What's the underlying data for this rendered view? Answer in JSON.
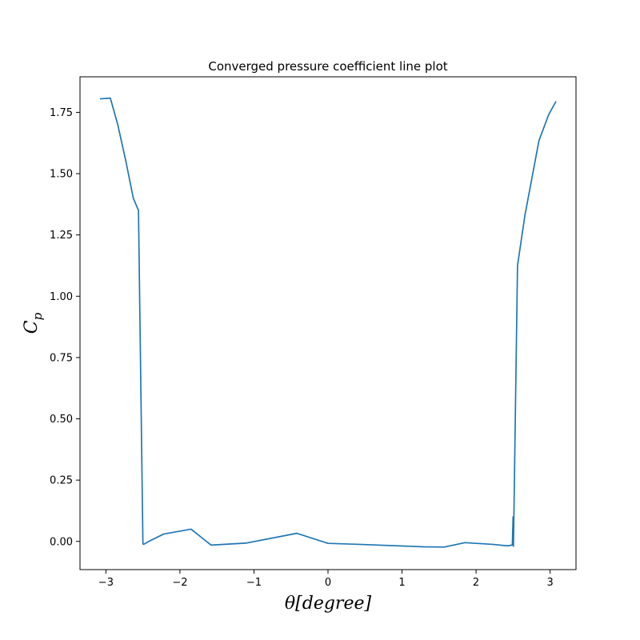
{
  "chart_data": {
    "type": "line",
    "title": "Converged pressure coefficient line plot",
    "xlabel": "θ[degree]",
    "ylabel_main": "C",
    "ylabel_sub": "p",
    "xlim": [
      -3.35,
      3.35
    ],
    "ylim": [
      -0.115,
      1.895
    ],
    "xticks": [
      -3,
      -2,
      -1,
      0,
      1,
      2,
      3
    ],
    "xtick_labels": [
      "−3",
      "−2",
      "−1",
      "0",
      "1",
      "2",
      "3"
    ],
    "yticks": [
      0.0,
      0.25,
      0.5,
      0.75,
      1.0,
      1.25,
      1.5,
      1.75
    ],
    "ytick_labels": [
      "0.00",
      "0.25",
      "0.50",
      "0.75",
      "1.00",
      "1.25",
      "1.50",
      "1.75"
    ],
    "grid": false,
    "series": [
      {
        "color": "#1f77b4",
        "x": [
          -3.08,
          -2.94,
          -2.84,
          -2.73,
          -2.63,
          -2.56,
          -2.5,
          -2.49,
          -2.42,
          -2.22,
          -1.85,
          -1.58,
          -1.11,
          -0.42,
          0.0,
          0.42,
          1.29,
          1.57,
          1.85,
          2.22,
          2.42,
          2.49,
          2.5,
          2.505,
          2.56,
          2.66,
          2.85,
          2.98,
          3.08
        ],
        "y": [
          1.805,
          1.808,
          1.7,
          1.55,
          1.4,
          1.35,
          -0.01,
          -0.012,
          0.0,
          0.03,
          0.05,
          -0.015,
          -0.007,
          0.033,
          -0.008,
          -0.012,
          -0.022,
          -0.023,
          -0.005,
          -0.012,
          -0.018,
          -0.015,
          0.1,
          -0.02,
          1.125,
          1.33,
          1.635,
          1.74,
          1.795
        ]
      }
    ]
  }
}
